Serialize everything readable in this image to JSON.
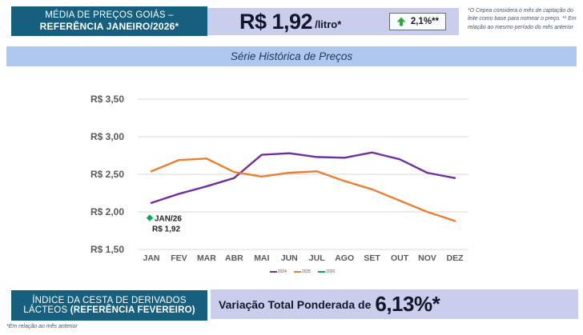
{
  "header": {
    "title_line1": "MÉDIA DE PREÇOS GOIÁS –",
    "title_line2": "REFERÊNCIA JANEIRO/2026*",
    "price": "R$ 1,92",
    "price_unit": "/litro*",
    "variation": "2,1%**",
    "variation_direction": "up",
    "footnote": "*O Cepea considera o mês de captação do leite como base para nomear o preço. ** Em relação ao mesmo período do mês anterior"
  },
  "banner": {
    "title": "Série Histórica de Preços"
  },
  "chart_data": {
    "type": "line",
    "title": "Série Histórica de Preços",
    "categories": [
      "JAN",
      "FEV",
      "MAR",
      "ABR",
      "MAI",
      "JUN",
      "JUL",
      "AGO",
      "SET",
      "OUT",
      "NOV",
      "DEZ"
    ],
    "ylim": [
      1.5,
      3.5
    ],
    "grid": true,
    "legend_position": "bottom",
    "y_ticks": [
      {
        "label": "R$ 3,50",
        "value": 3.5
      },
      {
        "label": "R$ 3,00",
        "value": 3.0
      },
      {
        "label": "R$ 2,50",
        "value": 2.5
      },
      {
        "label": "R$ 2,00",
        "value": 2.0
      },
      {
        "label": "R$ 1,50",
        "value": 1.5
      }
    ],
    "series": [
      {
        "name": "2024",
        "color": "#7030A0",
        "values": [
          2.12,
          2.24,
          2.34,
          2.45,
          2.76,
          2.78,
          2.73,
          2.72,
          2.79,
          2.7,
          2.52,
          2.45
        ]
      },
      {
        "name": "2025",
        "color": "#ED7D31",
        "values": [
          2.54,
          2.69,
          2.71,
          2.53,
          2.47,
          2.52,
          2.54,
          2.41,
          2.3,
          2.15,
          2.0,
          1.88
        ]
      },
      {
        "name": "2026",
        "color": "#00B050",
        "values": [
          1.92
        ]
      }
    ],
    "annotation": {
      "label": "JAN/26",
      "value_label": "R$ 1,92",
      "category": "JAN",
      "value": 1.92
    }
  },
  "footer": {
    "title_line1": "ÍNDICE DA CESTA DE DERIVADOS",
    "title_line2_regular": "LÁCTEOS ",
    "title_line2_bold": "(REFERÊNCIA FEVEREIRO)",
    "variation_text": "Variação Total Ponderada de",
    "variation_value": "6,13%*",
    "footnote": "*Em relação ao mês anterior"
  },
  "colors": {
    "teal_box": "#175F7E",
    "lavender_box": "#C8CEEB",
    "banner_blue": "#AFC8ED",
    "series_2024": "#7030A0",
    "series_2025": "#ED7D31",
    "series_2026": "#00B050",
    "badge_arrow_green": "#2EA838",
    "dark_text": "#14152B",
    "axis_text": "#595959"
  }
}
